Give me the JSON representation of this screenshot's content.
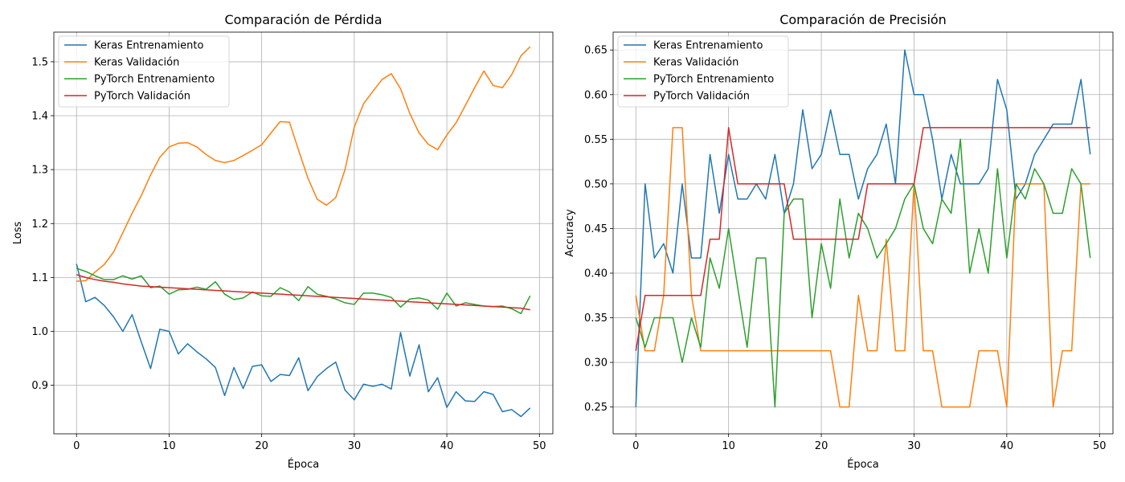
{
  "chart_data": [
    {
      "type": "line",
      "title": "Comparación de Pérdida",
      "xlabel": "Época",
      "ylabel": "Loss",
      "xlim": [
        -2.45,
        51.45
      ],
      "ylim": [
        0.81,
        1.555
      ],
      "xticks": [
        0,
        10,
        20,
        30,
        40,
        50
      ],
      "yticks": [
        0.9,
        1.0,
        1.1,
        1.2,
        1.3,
        1.4,
        1.5
      ],
      "grid": true,
      "legend_position": "top-left",
      "series": [
        {
          "name": "Keras Entrenamiento",
          "color": "#1f77b4",
          "values": [
            1.125,
            1.055,
            1.063,
            1.048,
            1.027,
            1.0,
            1.031,
            0.98,
            0.931,
            1.004,
            1.0,
            0.958,
            0.977,
            0.962,
            0.949,
            0.933,
            0.881,
            0.933,
            0.894,
            0.935,
            0.938,
            0.907,
            0.92,
            0.918,
            0.951,
            0.89,
            0.916,
            0.931,
            0.943,
            0.891,
            0.873,
            0.902,
            0.898,
            0.902,
            0.893,
            0.998,
            0.917,
            0.975,
            0.888,
            0.914,
            0.859,
            0.888,
            0.871,
            0.87,
            0.888,
            0.883,
            0.851,
            0.855,
            0.842,
            0.858
          ]
        },
        {
          "name": "Keras Validación",
          "color": "#ff7f0e",
          "values": [
            1.093,
            1.094,
            1.11,
            1.124,
            1.147,
            1.183,
            1.219,
            1.252,
            1.29,
            1.323,
            1.342,
            1.349,
            1.35,
            1.342,
            1.328,
            1.317,
            1.313,
            1.317,
            1.326,
            1.336,
            1.346,
            1.368,
            1.389,
            1.388,
            1.335,
            1.284,
            1.245,
            1.234,
            1.248,
            1.3,
            1.379,
            1.422,
            1.445,
            1.467,
            1.478,
            1.45,
            1.404,
            1.368,
            1.347,
            1.337,
            1.364,
            1.387,
            1.419,
            1.452,
            1.483,
            1.456,
            1.452,
            1.476,
            1.511,
            1.528
          ]
        },
        {
          "name": "PyTorch Entrenamiento",
          "color": "#2ca02c",
          "values": [
            1.117,
            1.111,
            1.103,
            1.096,
            1.096,
            1.103,
            1.097,
            1.103,
            1.081,
            1.084,
            1.069,
            1.077,
            1.078,
            1.082,
            1.078,
            1.092,
            1.069,
            1.059,
            1.062,
            1.073,
            1.066,
            1.065,
            1.081,
            1.073,
            1.057,
            1.083,
            1.069,
            1.065,
            1.06,
            1.053,
            1.05,
            1.071,
            1.071,
            1.068,
            1.063,
            1.045,
            1.06,
            1.062,
            1.058,
            1.041,
            1.071,
            1.047,
            1.053,
            1.05,
            1.047,
            1.046,
            1.047,
            1.042,
            1.033,
            1.066
          ]
        },
        {
          "name": "PyTorch Validación",
          "color": "#d62728",
          "values": [
            1.105,
            1.1,
            1.096,
            1.093,
            1.091,
            1.088,
            1.086,
            1.084,
            1.083,
            1.082,
            1.081,
            1.08,
            1.079,
            1.078,
            1.077,
            1.076,
            1.075,
            1.074,
            1.073,
            1.072,
            1.071,
            1.07,
            1.069,
            1.068,
            1.067,
            1.066,
            1.065,
            1.064,
            1.063,
            1.062,
            1.061,
            1.06,
            1.059,
            1.058,
            1.057,
            1.056,
            1.055,
            1.054,
            1.053,
            1.052,
            1.051,
            1.05,
            1.049,
            1.048,
            1.047,
            1.046,
            1.045,
            1.044,
            1.043,
            1.04
          ]
        }
      ]
    },
    {
      "type": "line",
      "title": "Comparación de Precisión",
      "xlabel": "Época",
      "ylabel": "Accuracy",
      "xlim": [
        -2.45,
        51.45
      ],
      "ylim": [
        0.22,
        0.67
      ],
      "xticks": [
        0,
        10,
        20,
        30,
        40,
        50
      ],
      "yticks": [
        0.25,
        0.3,
        0.35,
        0.4,
        0.45,
        0.5,
        0.55,
        0.6,
        0.65
      ],
      "grid": true,
      "legend_position": "top-left",
      "series": [
        {
          "name": "Keras Entrenamiento",
          "color": "#1f77b4",
          "values": [
            0.25,
            0.5,
            0.417,
            0.433,
            0.4,
            0.5,
            0.417,
            0.417,
            0.533,
            0.467,
            0.533,
            0.483,
            0.483,
            0.5,
            0.483,
            0.533,
            0.467,
            0.5,
            0.583,
            0.517,
            0.533,
            0.583,
            0.533,
            0.533,
            0.483,
            0.517,
            0.533,
            0.567,
            0.5,
            0.65,
            0.6,
            0.6,
            0.55,
            0.483,
            0.533,
            0.5,
            0.5,
            0.5,
            0.517,
            0.617,
            0.583,
            0.483,
            0.5,
            0.533,
            0.55,
            0.567,
            0.567,
            0.567,
            0.617,
            0.533
          ]
        },
        {
          "name": "Keras Validación",
          "color": "#ff7f0e",
          "values": [
            0.375,
            0.313,
            0.313,
            0.375,
            0.563,
            0.563,
            0.375,
            0.313,
            0.313,
            0.313,
            0.313,
            0.313,
            0.313,
            0.313,
            0.313,
            0.313,
            0.313,
            0.313,
            0.313,
            0.313,
            0.313,
            0.313,
            0.25,
            0.25,
            0.375,
            0.313,
            0.313,
            0.438,
            0.313,
            0.313,
            0.5,
            0.313,
            0.313,
            0.25,
            0.25,
            0.25,
            0.25,
            0.313,
            0.313,
            0.313,
            0.25,
            0.5,
            0.5,
            0.5,
            0.5,
            0.25,
            0.313,
            0.313,
            0.5,
            0.5
          ]
        },
        {
          "name": "PyTorch Entrenamiento",
          "color": "#2ca02c",
          "values": [
            0.35,
            0.317,
            0.35,
            0.35,
            0.35,
            0.3,
            0.35,
            0.317,
            0.417,
            0.383,
            0.45,
            0.383,
            0.317,
            0.417,
            0.417,
            0.25,
            0.467,
            0.483,
            0.483,
            0.35,
            0.433,
            0.383,
            0.483,
            0.417,
            0.467,
            0.45,
            0.417,
            0.433,
            0.45,
            0.483,
            0.5,
            0.45,
            0.433,
            0.483,
            0.467,
            0.55,
            0.4,
            0.45,
            0.4,
            0.517,
            0.417,
            0.5,
            0.483,
            0.517,
            0.5,
            0.467,
            0.467,
            0.517,
            0.5,
            0.417
          ]
        },
        {
          "name": "PyTorch Validación",
          "color": "#d62728",
          "values": [
            0.313,
            0.375,
            0.375,
            0.375,
            0.375,
            0.375,
            0.375,
            0.375,
            0.438,
            0.438,
            0.563,
            0.5,
            0.5,
            0.5,
            0.5,
            0.5,
            0.5,
            0.438,
            0.438,
            0.438,
            0.438,
            0.438,
            0.438,
            0.438,
            0.438,
            0.5,
            0.5,
            0.5,
            0.5,
            0.5,
            0.5,
            0.563,
            0.563,
            0.563,
            0.563,
            0.563,
            0.563,
            0.563,
            0.563,
            0.563,
            0.563,
            0.563,
            0.563,
            0.563,
            0.563,
            0.563,
            0.563,
            0.563,
            0.563,
            0.563
          ]
        }
      ]
    }
  ]
}
